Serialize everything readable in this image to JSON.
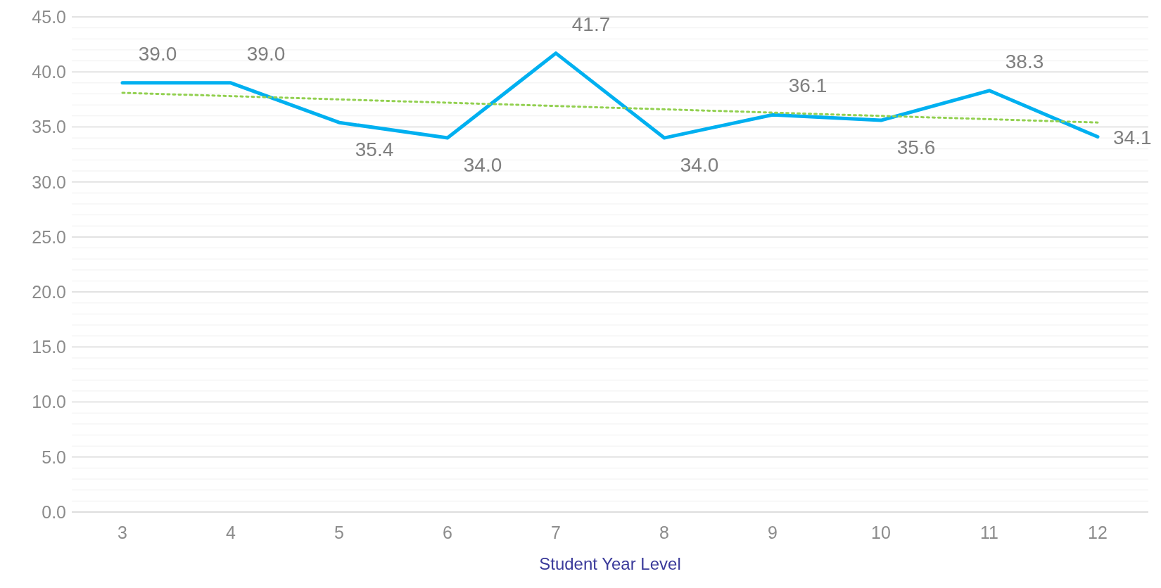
{
  "chart_data": {
    "type": "line",
    "xlabel": "Student Year Level",
    "categories": [
      "3",
      "4",
      "5",
      "6",
      "7",
      "8",
      "9",
      "10",
      "11",
      "12"
    ],
    "series": [
      {
        "color": "#00b0f0",
        "values": [
          39.0,
          39.0,
          35.4,
          34.0,
          41.7,
          34.0,
          36.1,
          35.6,
          38.3,
          34.1
        ],
        "value_labels": [
          "39.0",
          "39.0",
          "35.4",
          "34.0",
          "41.7",
          "34.0",
          "36.1",
          "35.6",
          "38.3",
          "34.1"
        ]
      },
      {
        "type": "line",
        "color": "#92d050",
        "line_style": "dotted",
        "values": [
          38.1,
          37.8,
          37.5,
          37.2,
          36.9,
          36.6,
          36.3,
          36.0,
          35.7,
          35.4
        ]
      }
    ],
    "ylim": [
      0,
      45
    ],
    "yticks": [
      {
        "value": 0,
        "label": "0.0"
      },
      {
        "value": 1,
        "label": null
      },
      {
        "value": 2,
        "label": null
      },
      {
        "value": 3,
        "label": null
      },
      {
        "value": 4,
        "label": null
      },
      {
        "value": 5,
        "label": "5.0"
      },
      {
        "value": 6,
        "label": null
      },
      {
        "value": 7,
        "label": null
      },
      {
        "value": 8,
        "label": null
      },
      {
        "value": 9,
        "label": null
      },
      {
        "value": 10,
        "label": "10.0"
      },
      {
        "value": 11,
        "label": null
      },
      {
        "value": 12,
        "label": null
      },
      {
        "value": 13,
        "label": null
      },
      {
        "value": 14,
        "label": null
      },
      {
        "value": 15,
        "label": "15.0"
      },
      {
        "value": 16,
        "label": null
      },
      {
        "value": 17,
        "label": null
      },
      {
        "value": 18,
        "label": null
      },
      {
        "value": 19,
        "label": null
      },
      {
        "value": 20,
        "label": "20.0"
      },
      {
        "value": 21,
        "label": null
      },
      {
        "value": 22,
        "label": null
      },
      {
        "value": 23,
        "label": null
      },
      {
        "value": 24,
        "label": null
      },
      {
        "value": 25,
        "label": "25.0"
      },
      {
        "value": 26,
        "label": null
      },
      {
        "value": 27,
        "label": null
      },
      {
        "value": 28,
        "label": null
      },
      {
        "value": 29,
        "label": null
      },
      {
        "value": 30,
        "label": "30.0"
      },
      {
        "value": 31,
        "label": null
      },
      {
        "value": 32,
        "label": null
      },
      {
        "value": 33,
        "label": null
      },
      {
        "value": 34,
        "label": null
      },
      {
        "value": 35,
        "label": "35.0"
      },
      {
        "value": 36,
        "label": null
      },
      {
        "value": 37,
        "label": null
      },
      {
        "value": 38,
        "label": null
      },
      {
        "value": 39,
        "label": null
      },
      {
        "value": 40,
        "label": "40.0"
      },
      {
        "value": 41,
        "label": null
      },
      {
        "value": 42,
        "label": null
      },
      {
        "value": 43,
        "label": null
      },
      {
        "value": 44,
        "label": null
      },
      {
        "value": 45,
        "label": "45.0"
      }
    ],
    "grid": "y",
    "marker": "none"
  }
}
